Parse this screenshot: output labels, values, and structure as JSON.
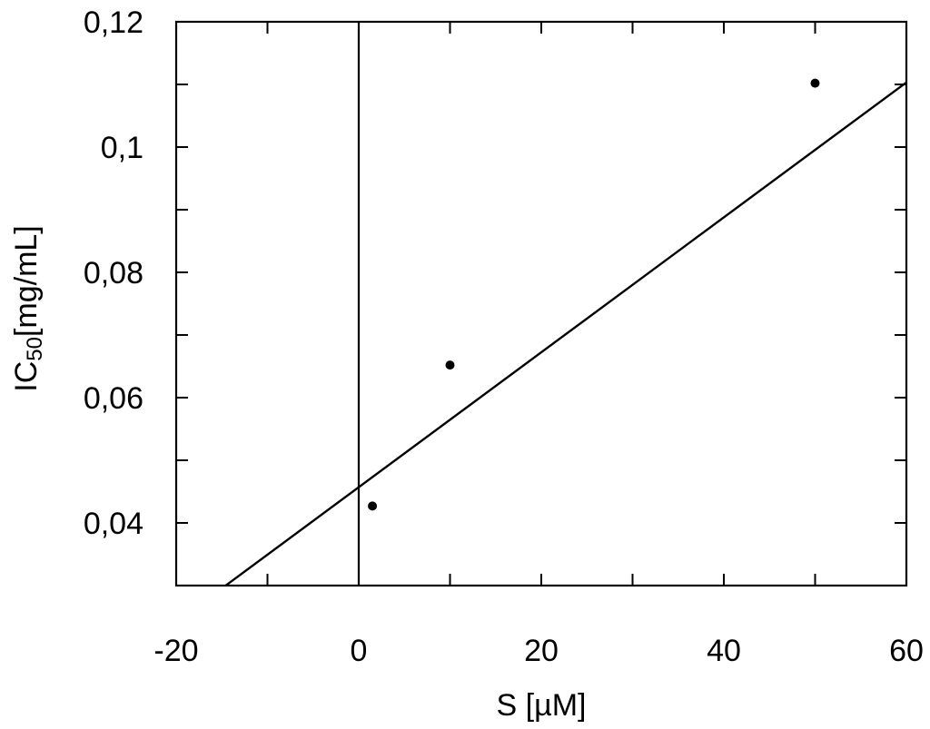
{
  "chart_data": {
    "type": "scatter",
    "xlabel": "S [µM]",
    "ylabel": "[mg/mL]",
    "ylabel_prefix": "IC",
    "ylabel_subscript": "50",
    "xlim": [
      -20,
      60
    ],
    "ylim": [
      0.03,
      0.12
    ],
    "x_ticks": [
      -20,
      -10,
      0,
      10,
      20,
      30,
      40,
      50,
      60
    ],
    "x_tick_labels": [
      {
        "value": -20,
        "text": "-20"
      },
      {
        "value": 0,
        "text": "0"
      },
      {
        "value": 20,
        "text": "20"
      },
      {
        "value": 40,
        "text": "40"
      },
      {
        "value": 60,
        "text": "60"
      }
    ],
    "y_ticks": [
      0.04,
      0.05,
      0.06,
      0.07,
      0.08,
      0.09,
      0.1,
      0.11,
      0.12
    ],
    "y_tick_labels": [
      {
        "value": 0.04,
        "text": "0,04"
      },
      {
        "value": 0.06,
        "text": "0,06"
      },
      {
        "value": 0.08,
        "text": "0,08"
      },
      {
        "value": 0.1,
        "text": "0,1"
      },
      {
        "value": 0.12,
        "text": "0,12"
      }
    ],
    "points": [
      {
        "x": 1.5,
        "y": 0.0427
      },
      {
        "x": 10,
        "y": 0.0652
      },
      {
        "x": 50,
        "y": 0.1102
      }
    ],
    "fit_line": {
      "slope": 0.001077,
      "intercept": 0.0457
    },
    "zero_line_x": 0,
    "grid": false,
    "colors": {
      "line": "#000000",
      "point": "#000000",
      "background": "#ffffff"
    }
  }
}
